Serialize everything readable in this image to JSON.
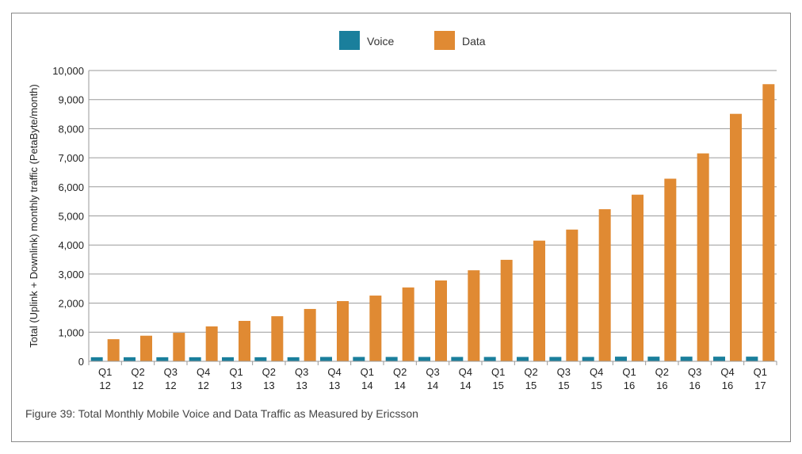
{
  "caption": "Figure 39: Total Monthly Mobile Voice and Data Traffic as Measured by Ericsson",
  "chart_data": {
    "type": "bar",
    "title": "",
    "xlabel": "",
    "ylabel": "Total (Uplink + Downlink) monthly traffic (PetaByte/month)",
    "ylim": [
      0,
      10000
    ],
    "yticks": [
      0,
      1000,
      2000,
      3000,
      4000,
      5000,
      6000,
      7000,
      8000,
      9000,
      10000
    ],
    "ytick_labels": [
      "0",
      "1,000",
      "2,000",
      "3,000",
      "4,000",
      "5,000",
      "6,000",
      "7,000",
      "8,000",
      "9,000",
      "10,000"
    ],
    "grid": true,
    "legend_position": "top-center",
    "categories": [
      [
        "Q1",
        "12"
      ],
      [
        "Q2",
        "12"
      ],
      [
        "Q3",
        "12"
      ],
      [
        "Q4",
        "12"
      ],
      [
        "Q1",
        "13"
      ],
      [
        "Q2",
        "13"
      ],
      [
        "Q3",
        "13"
      ],
      [
        "Q4",
        "13"
      ],
      [
        "Q1",
        "14"
      ],
      [
        "Q2",
        "14"
      ],
      [
        "Q3",
        "14"
      ],
      [
        "Q4",
        "14"
      ],
      [
        "Q1",
        "15"
      ],
      [
        "Q2",
        "15"
      ],
      [
        "Q3",
        "15"
      ],
      [
        "Q4",
        "15"
      ],
      [
        "Q1",
        "16"
      ],
      [
        "Q2",
        "16"
      ],
      [
        "Q3",
        "16"
      ],
      [
        "Q4",
        "16"
      ],
      [
        "Q1",
        "17"
      ]
    ],
    "series": [
      {
        "name": "Voice",
        "color": "#1a7f9c",
        "values": [
          140,
          140,
          140,
          140,
          140,
          140,
          140,
          150,
          150,
          150,
          150,
          150,
          150,
          150,
          150,
          150,
          160,
          160,
          160,
          160,
          160
        ]
      },
      {
        "name": "Data",
        "color": "#e08a33",
        "values": [
          760,
          880,
          980,
          1200,
          1390,
          1550,
          1800,
          2070,
          2260,
          2540,
          2780,
          3130,
          3490,
          4150,
          4530,
          5230,
          5730,
          6280,
          7150,
          8510,
          9530
        ]
      }
    ]
  }
}
